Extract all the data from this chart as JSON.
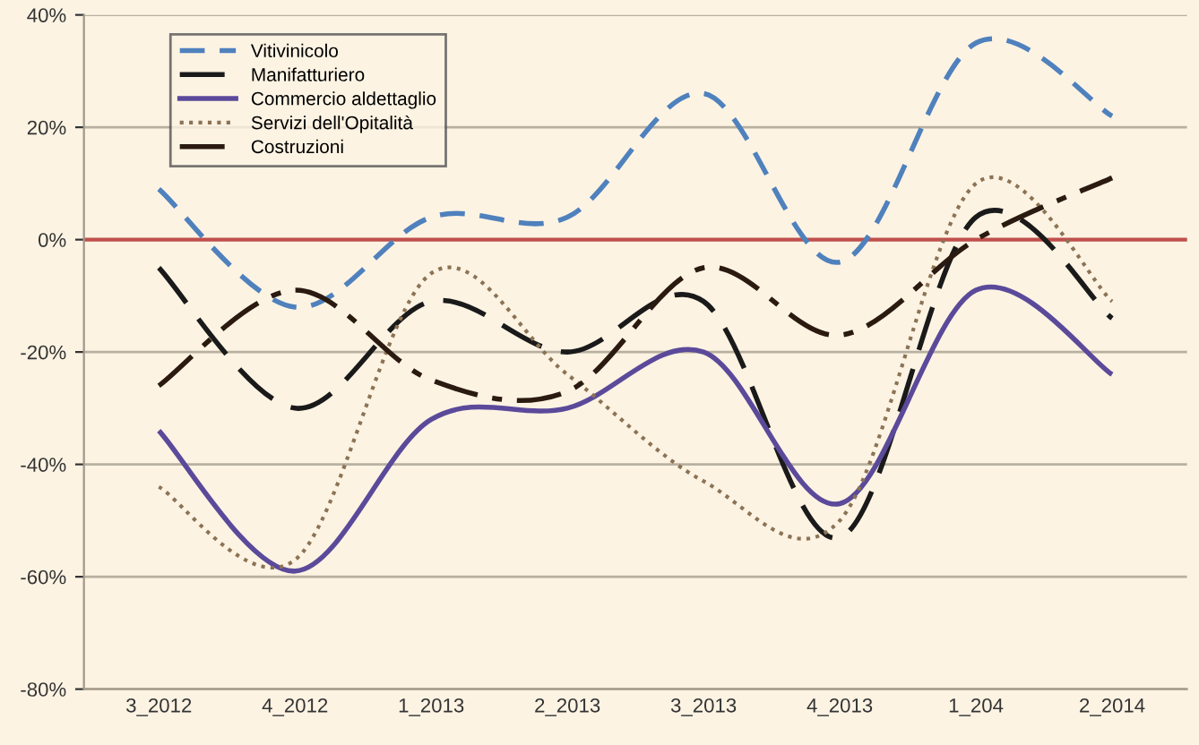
{
  "chart_data": {
    "type": "line",
    "categories": [
      "3_2012",
      "4_2012",
      "1_2013",
      "2_2013",
      "3_2013",
      "4_2013",
      "1_204",
      "2_2014"
    ],
    "series": [
      {
        "name": "Vitivinicolo",
        "color": "#4f81bd",
        "line_style": "dashed",
        "values": [
          9,
          -12,
          4,
          4,
          26,
          -4,
          35,
          22
        ]
      },
      {
        "name": "Manifatturiero",
        "color": "#1a1a1a",
        "line_style": "longdash",
        "values": [
          -5,
          -30,
          -11,
          -20,
          -11,
          -53,
          4,
          -14
        ]
      },
      {
        "name": "Commercio aldettaglio",
        "color": "#5b4a9a",
        "line_style": "solid",
        "values": [
          -34,
          -59,
          -32,
          -30,
          -20,
          -47,
          -9,
          -24
        ]
      },
      {
        "name": "Servizi dell'Opitalità",
        "color": "#8b7355",
        "line_style": "dotted",
        "values": [
          -44,
          -57,
          -6,
          -24,
          -43,
          -50,
          10,
          -11
        ]
      },
      {
        "name": "Costruzioni",
        "color": "#2a1a10",
        "line_style": "dashdot",
        "values": [
          -26,
          -9,
          -25,
          -27,
          -5,
          -17,
          0,
          11
        ]
      }
    ],
    "ylim": [
      -80,
      40
    ],
    "yticks": [
      {
        "value": -80,
        "label": "-80%"
      },
      {
        "value": -60,
        "label": "-60%"
      },
      {
        "value": -40,
        "label": "-40%"
      },
      {
        "value": -20,
        "label": "-20%"
      },
      {
        "value": 0,
        "label": "0%"
      },
      {
        "value": 20,
        "label": "20%"
      },
      {
        "value": 40,
        "label": "40%"
      }
    ],
    "grid": "y",
    "legend": "top left",
    "ref_lines": [
      {
        "axis": "y",
        "value": 0,
        "color": "#c0504d"
      }
    ]
  }
}
